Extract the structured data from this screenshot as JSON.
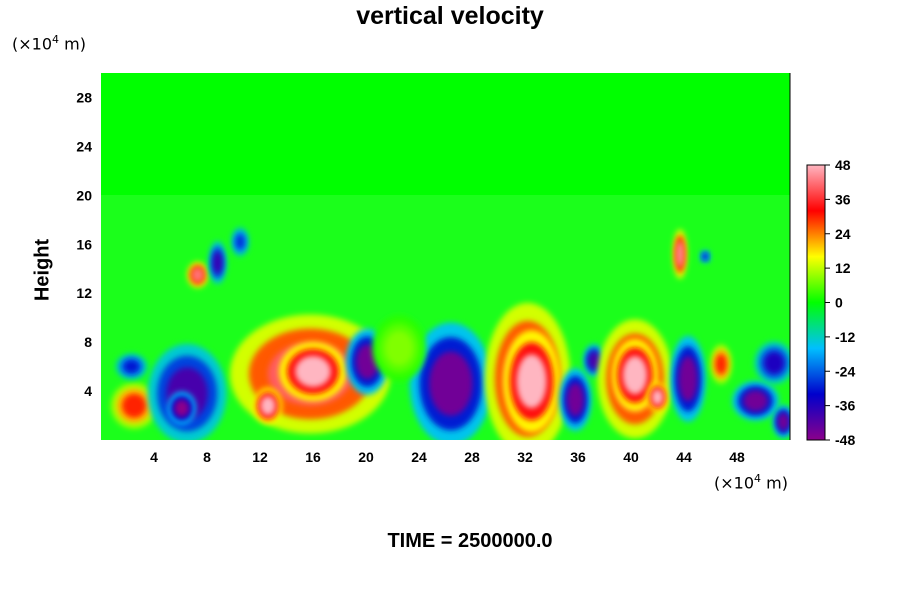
{
  "chart_data": {
    "type": "heatmap",
    "title": "vertical velocity",
    "ylabel": "Height",
    "xlabel": "",
    "x_unit_prefix": "(×10",
    "x_unit_exp": "4",
    "x_unit_suffix": " m)",
    "y_unit_prefix": "(×10",
    "y_unit_exp": "4",
    "y_unit_suffix": " m)",
    "xlim": [
      0,
      52
    ],
    "ylim": [
      0,
      30
    ],
    "x_ticks": [
      4,
      8,
      12,
      16,
      20,
      24,
      28,
      32,
      36,
      40,
      44,
      48
    ],
    "y_ticks": [
      4,
      8,
      12,
      16,
      20,
      24,
      28
    ],
    "colorbar_range": [
      -48,
      48
    ],
    "colorbar_ticks": [
      48,
      36,
      24,
      12,
      0,
      -12,
      -24,
      -36,
      -48
    ],
    "colormap": [
      "#8b008b",
      "#0000cc",
      "#00bfff",
      "#00ff00",
      "#ffff00",
      "#ff0000",
      "#ffb6c1"
    ],
    "background_value": 0,
    "features": [
      {
        "x": 2.5,
        "y": 2.8,
        "rx": 1.3,
        "ry": 1.4,
        "value": 30
      },
      {
        "x": 2.3,
        "y": 6.0,
        "rx": 0.9,
        "ry": 0.8,
        "value": -30
      },
      {
        "x": 6.5,
        "y": 3.8,
        "rx": 2.2,
        "ry": 3.0,
        "value": -40
      },
      {
        "x": 6.1,
        "y": 2.6,
        "rx": 0.8,
        "ry": 1.0,
        "value": -48
      },
      {
        "x": 7.3,
        "y": 13.5,
        "rx": 0.6,
        "ry": 0.8,
        "value": 42
      },
      {
        "x": 8.8,
        "y": 14.5,
        "rx": 0.5,
        "ry": 1.3,
        "value": -38
      },
      {
        "x": 15.8,
        "y": 5.4,
        "rx": 4.5,
        "ry": 3.6,
        "value": 40
      },
      {
        "x": 16.0,
        "y": 5.6,
        "rx": 1.9,
        "ry": 1.8,
        "value": 50
      },
      {
        "x": 12.6,
        "y": 2.8,
        "rx": 0.8,
        "ry": 1.1,
        "value": 50
      },
      {
        "x": 20.1,
        "y": 6.4,
        "rx": 1.2,
        "ry": 2.0,
        "value": -45
      },
      {
        "x": 26.4,
        "y": 4.6,
        "rx": 2.3,
        "ry": 3.7,
        "value": -45
      },
      {
        "x": 32.2,
        "y": 5.0,
        "rx": 2.4,
        "ry": 4.6,
        "value": 40
      },
      {
        "x": 32.5,
        "y": 4.8,
        "rx": 1.6,
        "ry": 3.1,
        "value": 50
      },
      {
        "x": 35.8,
        "y": 3.3,
        "rx": 0.9,
        "ry": 1.9,
        "value": -45
      },
      {
        "x": 37.2,
        "y": 6.5,
        "rx": 0.6,
        "ry": 1.0,
        "value": -40
      },
      {
        "x": 40.3,
        "y": 5.0,
        "rx": 2.1,
        "ry": 3.6,
        "value": 40
      },
      {
        "x": 40.3,
        "y": 5.3,
        "rx": 1.3,
        "ry": 2.2,
        "value": 50
      },
      {
        "x": 42.0,
        "y": 3.5,
        "rx": 0.6,
        "ry": 0.9,
        "value": 50
      },
      {
        "x": 44.3,
        "y": 5.0,
        "rx": 1.0,
        "ry": 2.6,
        "value": -45
      },
      {
        "x": 43.7,
        "y": 15.2,
        "rx": 0.4,
        "ry": 1.5,
        "value": 44
      },
      {
        "x": 45.6,
        "y": 15.0,
        "rx": 0.3,
        "ry": 0.4,
        "value": -30
      },
      {
        "x": 46.8,
        "y": 6.2,
        "rx": 0.6,
        "ry": 1.2,
        "value": 30
      },
      {
        "x": 49.4,
        "y": 3.2,
        "rx": 1.3,
        "ry": 1.2,
        "value": -45
      },
      {
        "x": 50.8,
        "y": 6.3,
        "rx": 1.1,
        "ry": 1.3,
        "value": -35
      },
      {
        "x": 51.5,
        "y": 1.5,
        "rx": 0.6,
        "ry": 1.0,
        "value": -45
      },
      {
        "x": 10.5,
        "y": 16.2,
        "rx": 0.5,
        "ry": 0.9,
        "value": -28
      },
      {
        "x": 22.5,
        "y": 7.5,
        "rx": 1.5,
        "ry": 2.0,
        "value": 8
      }
    ],
    "time_label": "TIME = 2500000.0"
  }
}
